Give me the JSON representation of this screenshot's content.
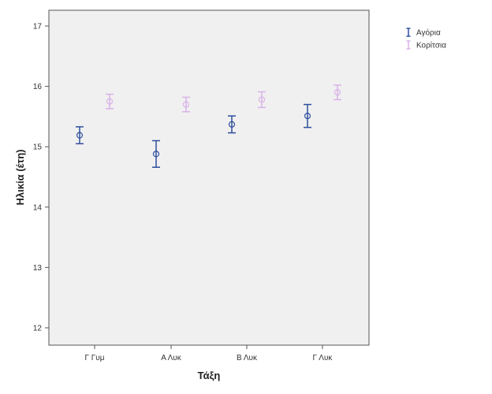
{
  "chart_data": {
    "type": "errorbar",
    "xlabel": "Τάξη",
    "ylabel": "Ηλικία (έτη)",
    "categories": [
      "Γ Γυμ",
      "Α Λυκ",
      "Β Λυκ",
      "Γ Λυκ"
    ],
    "ylim": [
      11.75,
      17.3
    ],
    "yticks": [
      12,
      13,
      14,
      15,
      16,
      17
    ],
    "grid": false,
    "legend_position": "top-right, outside plot",
    "background": "#f0f0f0",
    "series": [
      {
        "name": "Αγόρια",
        "color": "#2e4f9e",
        "values": [
          15.19,
          14.88,
          15.37,
          15.51
        ],
        "lower": [
          15.05,
          14.66,
          15.23,
          15.32
        ],
        "upper": [
          15.33,
          15.1,
          15.51,
          15.7
        ]
      },
      {
        "name": "Κορίτσια",
        "color": "#d9b3e8",
        "values": [
          15.75,
          15.7,
          15.78,
          15.9
        ],
        "lower": [
          15.63,
          15.58,
          15.65,
          15.78
        ],
        "upper": [
          15.87,
          15.82,
          15.91,
          16.02
        ]
      }
    ]
  }
}
